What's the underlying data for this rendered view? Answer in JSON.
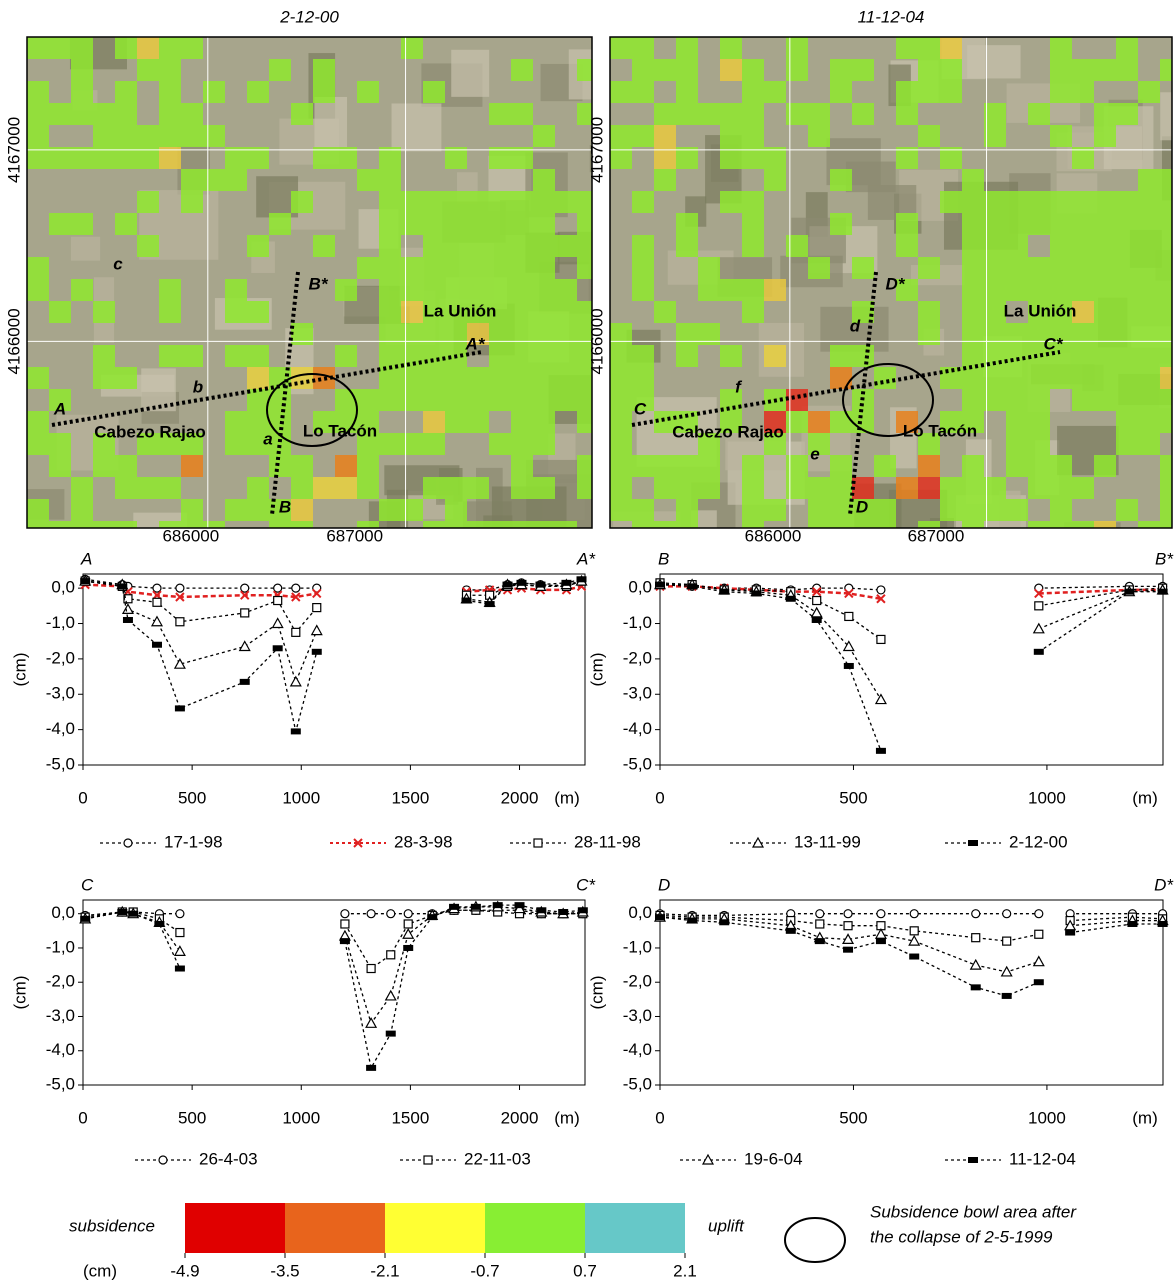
{
  "maps": [
    {
      "title": "2-12-00",
      "xticks": [
        686000,
        687000
      ],
      "yticks": [
        4167000,
        4166000
      ],
      "labels": [
        "La Unión",
        "Cabezo Rajao",
        "Lo Tacón"
      ],
      "profile_labels": [
        "A",
        "A*",
        "B",
        "B*",
        "a",
        "b",
        "c"
      ]
    },
    {
      "title": "11-12-04",
      "xticks": [
        686000,
        687000
      ],
      "yticks": [
        4167000,
        4166000
      ],
      "labels": [
        "La Unión",
        "Cabezo Rajao",
        "Lo Tacón"
      ],
      "profile_labels": [
        "C",
        "C*",
        "D",
        "D*",
        "d",
        "e",
        "f"
      ]
    }
  ],
  "chart_data": [
    {
      "type": "line",
      "start_label": "A",
      "end_label": "A*",
      "y_label": "(cm)",
      "x_unit": "(m)",
      "xlim": [
        0,
        2300
      ],
      "xticks": [
        0,
        500,
        1000,
        1500,
        2000
      ],
      "ylim": [
        -5,
        0.4
      ],
      "yticks": [
        {
          "value": 0,
          "label": "0,0"
        },
        {
          "value": -1,
          "label": "-1,0"
        },
        {
          "value": -2,
          "label": "-2,0"
        },
        {
          "value": -3,
          "label": "-3,0"
        },
        {
          "value": -4,
          "label": "-4,0"
        },
        {
          "value": -5,
          "label": "-5,0"
        }
      ],
      "x": [
        10,
        180,
        206,
        339,
        444,
        741,
        892,
        975,
        1071,
        null,
        1757,
        1863,
        1945,
        2009,
        2096,
        2215,
        2284
      ],
      "series": [
        {
          "name": "17-1-98",
          "color": "#000000",
          "marker": "circle",
          "values": [
            0.25,
            0.1,
            0.05,
            0,
            0,
            0,
            0,
            0,
            0,
            null,
            -0.05,
            -0.05,
            0.1,
            0.15,
            0.1,
            0.05,
            0.2
          ]
        },
        {
          "name": "28-3-98",
          "color": "#e02020",
          "marker": "x",
          "values": [
            0.1,
            0.05,
            -0.1,
            -0.2,
            -0.25,
            -0.2,
            -0.2,
            -0.25,
            -0.15,
            null,
            -0.1,
            -0.05,
            -0.05,
            0,
            -0.05,
            -0.05,
            0.05
          ]
        },
        {
          "name": "28-11-98",
          "color": "#000000",
          "marker": "square",
          "values": [
            0.2,
            0.05,
            -0.3,
            -0.4,
            -0.95,
            -0.7,
            -0.35,
            -1.25,
            -0.55,
            null,
            -0.2,
            -0.2,
            0.05,
            0.1,
            0.05,
            0.05,
            0.2
          ]
        },
        {
          "name": "13-11-99",
          "color": "#000000",
          "marker": "triangle",
          "values": [
            0.2,
            0.1,
            -0.6,
            -0.95,
            -2.15,
            -1.65,
            -1.0,
            -2.65,
            -1.2,
            null,
            -0.3,
            -0.4,
            0.1,
            0.1,
            0.05,
            0.1,
            0.2
          ]
        },
        {
          "name": "2-12-00",
          "color": "#000000",
          "marker": "bar",
          "values": [
            0.2,
            0.05,
            -0.9,
            -1.6,
            -3.4,
            -2.65,
            -1.7,
            -4.05,
            -1.8,
            null,
            -0.35,
            -0.45,
            0.1,
            0.15,
            0.1,
            0.15,
            0.25
          ]
        }
      ]
    },
    {
      "type": "line",
      "start_label": "B",
      "end_label": "B*",
      "y_label": "(cm)",
      "x_unit": "(m)",
      "xlim": [
        0,
        1300
      ],
      "xticks": [
        0,
        500,
        1000
      ],
      "ylim": [
        -5,
        0.4
      ],
      "yticks": [
        {
          "value": 0,
          "label": "0,0"
        },
        {
          "value": -1,
          "label": "-1,0"
        },
        {
          "value": -2,
          "label": "-2,0"
        },
        {
          "value": -3,
          "label": "-3,0"
        },
        {
          "value": -4,
          "label": "-4,0"
        },
        {
          "value": -5,
          "label": "-5,0"
        }
      ],
      "x": [
        0,
        83,
        166,
        249,
        338,
        405,
        488,
        571,
        null,
        979,
        1213,
        1299
      ],
      "series": [
        {
          "color": "#000000",
          "marker": "circle",
          "values": [
            0.1,
            0.05,
            0,
            0,
            -0.05,
            0,
            0,
            -0.05,
            null,
            0,
            0.05,
            0.05
          ]
        },
        {
          "color": "#e02020",
          "marker": "x",
          "values": [
            0.05,
            0.05,
            0,
            -0.05,
            -0.1,
            -0.1,
            -0.15,
            -0.3,
            null,
            -0.15,
            -0.05,
            -0.05
          ]
        },
        {
          "color": "#000000",
          "marker": "square",
          "values": [
            0.15,
            0.1,
            -0.05,
            -0.05,
            -0.1,
            -0.35,
            -0.8,
            -1.45,
            null,
            -0.5,
            -0.05,
            0
          ]
        },
        {
          "color": "#000000",
          "marker": "triangle",
          "values": [
            0.1,
            0.1,
            -0.05,
            -0.1,
            -0.2,
            -0.7,
            -1.65,
            -3.15,
            null,
            -1.15,
            -0.1,
            -0.05
          ]
        },
        {
          "color": "#000000",
          "marker": "bar",
          "values": [
            0.1,
            0.05,
            -0.1,
            -0.15,
            -0.3,
            -0.9,
            -2.2,
            -4.6,
            null,
            -1.8,
            -0.1,
            -0.1
          ]
        }
      ]
    },
    {
      "type": "line",
      "start_label": "C",
      "end_label": "C*",
      "y_label": "(cm)",
      "x_unit": "(m)",
      "xlim": [
        0,
        2300
      ],
      "xticks": [
        0,
        500,
        1000,
        1500,
        2000
      ],
      "ylim": [
        -5,
        0.4
      ],
      "yticks": [
        {
          "value": 0,
          "label": "0,0"
        },
        {
          "value": -1,
          "label": "-1,0"
        },
        {
          "value": -2,
          "label": "-2,0"
        },
        {
          "value": -3,
          "label": "-3,0"
        },
        {
          "value": -4,
          "label": "-4,0"
        },
        {
          "value": -5,
          "label": "-5,0"
        }
      ],
      "x": [
        10,
        180,
        230,
        350,
        444,
        null,
        1200,
        1320,
        1410,
        1490,
        1600,
        1700,
        1800,
        1900,
        2000,
        2100,
        2200,
        2290
      ],
      "series": [
        {
          "name": "26-4-03",
          "color": "#000000",
          "marker": "circle",
          "values": [
            -0.05,
            0.05,
            0.05,
            0,
            0,
            null,
            0,
            0,
            0,
            0,
            0,
            0.1,
            0.1,
            0.1,
            0.1,
            0,
            0,
            0
          ]
        },
        {
          "name": "22-11-03",
          "color": "#000000",
          "marker": "square",
          "values": [
            -0.1,
            0.05,
            0.05,
            -0.15,
            -0.55,
            null,
            -0.3,
            -1.6,
            -1.2,
            -0.3,
            -0.05,
            0.1,
            0.1,
            0.05,
            0,
            0,
            0,
            0
          ]
        },
        {
          "name": "19-6-04",
          "color": "#000000",
          "marker": "triangle",
          "values": [
            -0.15,
            0.05,
            0,
            -0.25,
            -1.1,
            null,
            -0.65,
            -3.2,
            -2.4,
            -0.6,
            -0.05,
            0.15,
            0.2,
            0.2,
            0.15,
            0.05,
            0,
            0.05
          ]
        },
        {
          "name": "11-12-04",
          "color": "#000000",
          "marker": "bar",
          "values": [
            -0.15,
            0.05,
            0,
            -0.3,
            -1.6,
            null,
            -0.8,
            -4.5,
            -3.5,
            -1.0,
            -0.1,
            0.2,
            0.2,
            0.25,
            0.25,
            0.1,
            0.05,
            0.1
          ]
        }
      ]
    },
    {
      "type": "line",
      "start_label": "D",
      "end_label": "D*",
      "y_label": "(cm)",
      "x_unit": "(m)",
      "xlim": [
        0,
        1300
      ],
      "xticks": [
        0,
        500,
        1000
      ],
      "ylim": [
        -5,
        0.4
      ],
      "yticks": [
        {
          "value": 0,
          "label": "0,0"
        },
        {
          "value": -1,
          "label": "-1,0"
        },
        {
          "value": -2,
          "label": "-2,0"
        },
        {
          "value": -3,
          "label": "-3,0"
        },
        {
          "value": -4,
          "label": "-4,0"
        },
        {
          "value": -5,
          "label": "-5,0"
        }
      ],
      "x": [
        0,
        83,
        166,
        338,
        413,
        486,
        571,
        657,
        816,
        896,
        979,
        null,
        1060,
        1221,
        1299
      ],
      "series": [
        {
          "color": "#000000",
          "marker": "circle",
          "values": [
            0,
            -0.05,
            -0.05,
            0,
            0,
            0,
            0,
            0,
            0,
            0,
            0,
            null,
            0,
            0,
            0
          ]
        },
        {
          "color": "#000000",
          "marker": "square",
          "values": [
            -0.05,
            -0.1,
            -0.1,
            -0.2,
            -0.3,
            -0.35,
            -0.35,
            -0.5,
            -0.7,
            -0.8,
            -0.6,
            null,
            -0.2,
            -0.1,
            -0.15
          ]
        },
        {
          "color": "#000000",
          "marker": "triangle",
          "values": [
            -0.1,
            -0.15,
            -0.15,
            -0.35,
            -0.7,
            -0.75,
            -0.6,
            -0.8,
            -1.5,
            -1.7,
            -1.4,
            null,
            -0.35,
            -0.2,
            -0.2
          ]
        },
        {
          "color": "#000000",
          "marker": "bar",
          "values": [
            -0.1,
            -0.2,
            -0.25,
            -0.5,
            -0.8,
            -1.05,
            -0.8,
            -1.25,
            -2.15,
            -2.4,
            -2.0,
            null,
            -0.55,
            -0.3,
            -0.3
          ]
        }
      ]
    }
  ],
  "colorbar": {
    "left_label": "subsidence",
    "right_label": "uplift",
    "unit": "(cm)",
    "ticks": [
      -4.9,
      -3.5,
      -2.1,
      -0.7,
      0.7,
      2.1
    ],
    "colors": [
      "#e00000",
      "#e8641c",
      "#ffff33",
      "#88ee33",
      "#66c8c8"
    ]
  },
  "bowl_note": [
    "Subsidence bowl area after",
    "the collapse of 2-5-1999"
  ]
}
